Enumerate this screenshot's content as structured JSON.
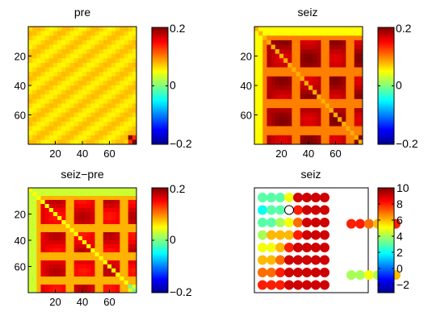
{
  "chart_data": [
    {
      "type": "heatmap",
      "title": "pre",
      "xticks": [
        20,
        40,
        60
      ],
      "yticks": [
        20,
        40,
        60
      ],
      "xlim": [
        0,
        80
      ],
      "ylim": [
        0,
        80
      ],
      "clim": [
        -0.2,
        0.2
      ],
      "colorbar_ticks": [
        "0.2",
        "0",
        "−0.2"
      ],
      "description_pattern": "mostly near 0.06 (green-yellow), slight hot corner at bottom-right"
    },
    {
      "type": "heatmap",
      "title": "seiz",
      "xticks": [
        20,
        40,
        60
      ],
      "yticks": [
        20,
        40,
        60
      ],
      "xlim": [
        0,
        80
      ],
      "ylim": [
        0,
        80
      ],
      "clim": [
        -0.2,
        0.2
      ],
      "colorbar_ticks": [
        "0.2",
        "0",
        "−0.2"
      ]
    },
    {
      "type": "heatmap",
      "title": "seiz−pre",
      "xticks": [
        20,
        40,
        60
      ],
      "yticks": [
        20,
        40,
        60
      ],
      "xlim": [
        0,
        80
      ],
      "ylim": [
        0,
        80
      ],
      "clim": [
        -0.2,
        0.2
      ],
      "colorbar_ticks": [
        "0.2",
        "0",
        "−0.2"
      ]
    },
    {
      "type": "scatter",
      "title": "seiz",
      "clim": [
        -3,
        10
      ],
      "colorbar_ticks": [
        "10",
        "8",
        "6",
        "4",
        "2",
        "0",
        "−2"
      ],
      "grids": [
        {
          "x": [
            1,
            2,
            3,
            4,
            5,
            6,
            7,
            8
          ],
          "y": [
            1,
            2,
            3,
            4,
            5,
            6,
            7,
            8
          ],
          "values": [
            [
              3,
              3,
              3,
              5,
              9,
              9,
              9,
              9
            ],
            [
              2,
              3,
              3,
              null,
              8,
              9,
              9,
              9
            ],
            [
              3,
              3,
              4,
              5,
              7,
              9,
              9,
              9
            ],
            [
              4,
              6,
              6,
              6,
              8,
              9,
              9,
              9
            ],
            [
              5,
              5,
              6,
              8,
              9,
              9,
              9,
              9
            ],
            [
              6,
              6,
              7,
              9,
              9,
              9,
              9,
              9
            ],
            [
              7,
              7,
              8,
              9,
              9,
              9,
              9,
              9
            ],
            [
              8,
              8,
              8,
              9,
              9,
              9,
              9,
              9
            ]
          ]
        },
        {
          "x": [
            11,
            12,
            13,
            14,
            15,
            16
          ],
          "y": [
            3.1
          ],
          "values": [
            [
              8,
              8,
              7,
              6,
              7,
              8
            ]
          ]
        },
        {
          "x": [
            11,
            12,
            13,
            14,
            15,
            16
          ],
          "y": [
            7.2
          ],
          "values": [
            [
              4,
              4,
              5,
              4,
              5,
              6
            ]
          ]
        }
      ],
      "open_marker": {
        "x": 4,
        "y": 2
      }
    }
  ]
}
